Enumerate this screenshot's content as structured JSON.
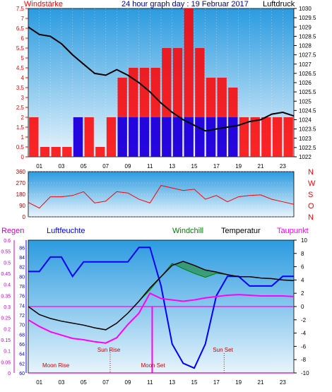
{
  "header": {
    "left_label": "Windstärke",
    "center_title": "24 hour graph day : 19 Februar 2017",
    "right_label": "Luftdruck"
  },
  "colors": {
    "panel_top": "#2b9be0",
    "panel_bottom": "#e8f4fc",
    "red": "#ff0000",
    "blue": "#0000ff",
    "black": "#000000",
    "magenta": "#ff00ff",
    "green": "#008000",
    "dark_red": "#990000"
  },
  "chart_data": [
    {
      "type": "bar",
      "title": "24 hour graph day : 19 Februar 2017",
      "left_axis_label": "Windstärke",
      "right_axis_label": "Luftdruck",
      "x_tick_labels": [
        "01",
        "03",
        "05",
        "07",
        "09",
        "11",
        "13",
        "15",
        "17",
        "19",
        "21",
        "23"
      ],
      "ylim_left": [
        0,
        7.5
      ],
      "y_ticks_left": [
        "0",
        "0.5",
        "1",
        "1.5",
        "2",
        "2.5",
        "3",
        "3.5",
        "4",
        "4.5",
        "5",
        "5.5",
        "6",
        "6.5",
        "7",
        "7.5"
      ],
      "ylim_right": [
        1022,
        1030
      ],
      "y_ticks_right": [
        "1022",
        "1022.5",
        "1023",
        "1023.5",
        "1024",
        "1024.5",
        "1025",
        "1025.5",
        "1026",
        "1026.5",
        "1027",
        "1027.5",
        "1028",
        "1028.5",
        "1029",
        "1029.5",
        "1030"
      ],
      "pressure": {
        "x": [
          0,
          1,
          2,
          3,
          4,
          5,
          6,
          7,
          8,
          9,
          10,
          11,
          12,
          13,
          14,
          15,
          16,
          17,
          18,
          19,
          20,
          21,
          22,
          23,
          24
        ],
        "y": [
          1029.0,
          1028.6,
          1028.5,
          1028.1,
          1027.5,
          1027.0,
          1026.5,
          1026.4,
          1026.7,
          1026.4,
          1026.0,
          1025.5,
          1024.9,
          1024.4,
          1024.0,
          1023.7,
          1023.4,
          1023.5,
          1023.6,
          1023.7,
          1023.9,
          1024.0,
          1024.3,
          1024.4,
          1024.2
        ]
      },
      "gusts": {
        "x": [
          0.5,
          1.5,
          2.5,
          3.5,
          4.5,
          5.5,
          6.5,
          7.5,
          8.5,
          9.5,
          10.5,
          11.5,
          12.5,
          13.5,
          14.5,
          15.5,
          16.5,
          17.5,
          18.5,
          19.5,
          20.5,
          21.5,
          22.5,
          23.5
        ],
        "y": [
          2.0,
          0.5,
          0.5,
          0.5,
          2.0,
          2.0,
          0.5,
          2.0,
          4.0,
          4.5,
          4.5,
          4.5,
          5.5,
          5.5,
          7.5,
          5.5,
          4.0,
          4.0,
          3.5,
          2.0,
          2.0,
          2.0,
          2.0,
          2.0
        ]
      },
      "average_wind": {
        "x": [
          0.5,
          1.5,
          2.5,
          3.5,
          4.5,
          5.5,
          6.5,
          7.5,
          8.5,
          9.5,
          10.5,
          11.5,
          12.5,
          13.5,
          14.5,
          15.5,
          16.5,
          17.5,
          18.5,
          19.5,
          20.5,
          21.5,
          22.5,
          23.5
        ],
        "y": [
          0,
          0,
          0,
          0,
          2.0,
          0,
          0,
          0,
          2.0,
          2.0,
          2.0,
          2.0,
          2.0,
          2.0,
          2.0,
          2.0,
          2.0,
          2.0,
          2.0,
          0,
          0,
          0,
          0,
          0
        ]
      }
    },
    {
      "type": "line",
      "right_labels": [
        "N",
        "W",
        "S",
        "O",
        "N"
      ],
      "ylim": [
        0,
        360
      ],
      "y_ticks": [
        "0",
        "90",
        "180",
        "270",
        "360"
      ],
      "wind_direction": {
        "x": [
          0,
          1,
          2,
          3,
          4,
          5,
          6,
          7,
          8,
          9,
          10,
          11,
          12,
          13,
          14,
          15,
          16,
          17,
          18,
          19,
          20,
          21,
          22,
          23,
          24
        ],
        "y": [
          115,
          70,
          160,
          160,
          170,
          200,
          110,
          125,
          200,
          190,
          140,
          110,
          250,
          230,
          210,
          220,
          140,
          170,
          120,
          160,
          170,
          175,
          140,
          120,
          100
        ]
      }
    },
    {
      "type": "line",
      "legend": [
        "Regen",
        "Luftfeuchte",
        "Windchill",
        "Temperatur",
        "Taupunkt"
      ],
      "left_outer_ticks": [
        "0",
        "0.05",
        "0.1",
        "0.15",
        "0.2",
        "0.25",
        "0.3",
        "0.35",
        "0.4",
        "0.45",
        "0.5",
        "0.55",
        "0.6"
      ],
      "left_inner_ticks": [
        "60",
        "62",
        "64",
        "66",
        "68",
        "70",
        "72",
        "74",
        "76",
        "78",
        "80",
        "82",
        "84",
        "86"
      ],
      "right_ticks": [
        "-10",
        "-8",
        "-6",
        "-4",
        "-2",
        "0",
        "2",
        "4",
        "6",
        "8",
        "10"
      ],
      "ylim_right": [
        -10,
        10
      ],
      "ylim_humidity": [
        60,
        87.5
      ],
      "ylim_rain": [
        0,
        0.6
      ],
      "annotations": [
        "Moon Rise",
        "Sun Rise",
        "Moon Set",
        "Sun Set"
      ],
      "temperature": {
        "x": [
          0,
          1,
          2,
          3,
          4,
          5,
          6,
          7,
          8,
          9,
          10,
          11,
          12,
          13,
          14,
          15,
          16,
          17,
          18,
          19,
          20,
          21,
          22,
          23,
          24
        ],
        "y": [
          0.0,
          -1.2,
          -1.8,
          -2.2,
          -2.5,
          -2.8,
          -3.2,
          -3.5,
          -2.5,
          -1.0,
          0.8,
          2.8,
          4.5,
          6.2,
          6.8,
          6.2,
          5.5,
          5.2,
          4.8,
          4.5,
          4.5,
          4.3,
          4.2,
          4.0,
          3.9
        ]
      },
      "windchill": {
        "x": [
          0,
          1,
          2,
          3,
          4,
          5,
          6,
          7,
          8,
          9,
          10,
          11,
          12,
          13,
          14,
          15,
          16,
          17,
          18,
          19,
          20,
          21,
          22,
          23,
          24
        ],
        "y": [
          0.0,
          -1.2,
          -1.8,
          -2.2,
          -2.5,
          -2.8,
          -3.2,
          -3.5,
          -2.5,
          -1.0,
          0.8,
          2.5,
          4.5,
          6.5,
          5.7,
          5.0,
          4.4,
          5.0,
          4.8,
          4.5,
          4.5,
          4.3,
          4.2,
          4.0,
          3.9
        ]
      },
      "dewpoint": {
        "x": [
          0,
          1,
          2,
          3,
          4,
          5,
          6,
          7,
          8,
          9,
          10,
          11,
          12,
          13,
          14,
          15,
          16,
          17,
          18,
          19,
          20,
          21,
          22,
          23,
          24
        ],
        "y": [
          -2.0,
          -3.0,
          -3.8,
          -4.3,
          -4.8,
          -5.0,
          -5.3,
          -5.5,
          -4.7,
          -2.7,
          -1.0,
          2.0,
          1.2,
          1.0,
          0.8,
          1.0,
          1.3,
          1.5,
          1.7,
          1.8,
          1.7,
          1.6,
          1.6,
          1.6,
          1.5
        ]
      },
      "humidity": {
        "x": [
          0,
          1,
          2,
          3,
          4,
          5,
          6,
          7,
          8,
          9,
          10,
          11,
          12,
          13,
          14,
          15,
          16,
          17,
          18,
          19,
          20,
          21,
          22,
          23,
          24
        ],
        "y": [
          81,
          81,
          84,
          84,
          80,
          83,
          83,
          83,
          83,
          83,
          86,
          86,
          78,
          66,
          62,
          61,
          66,
          76,
          80,
          80,
          78,
          78,
          78,
          80,
          80
        ]
      },
      "rain": {
        "x": [
          0,
          24
        ],
        "y": [
          0,
          0
        ]
      }
    }
  ]
}
